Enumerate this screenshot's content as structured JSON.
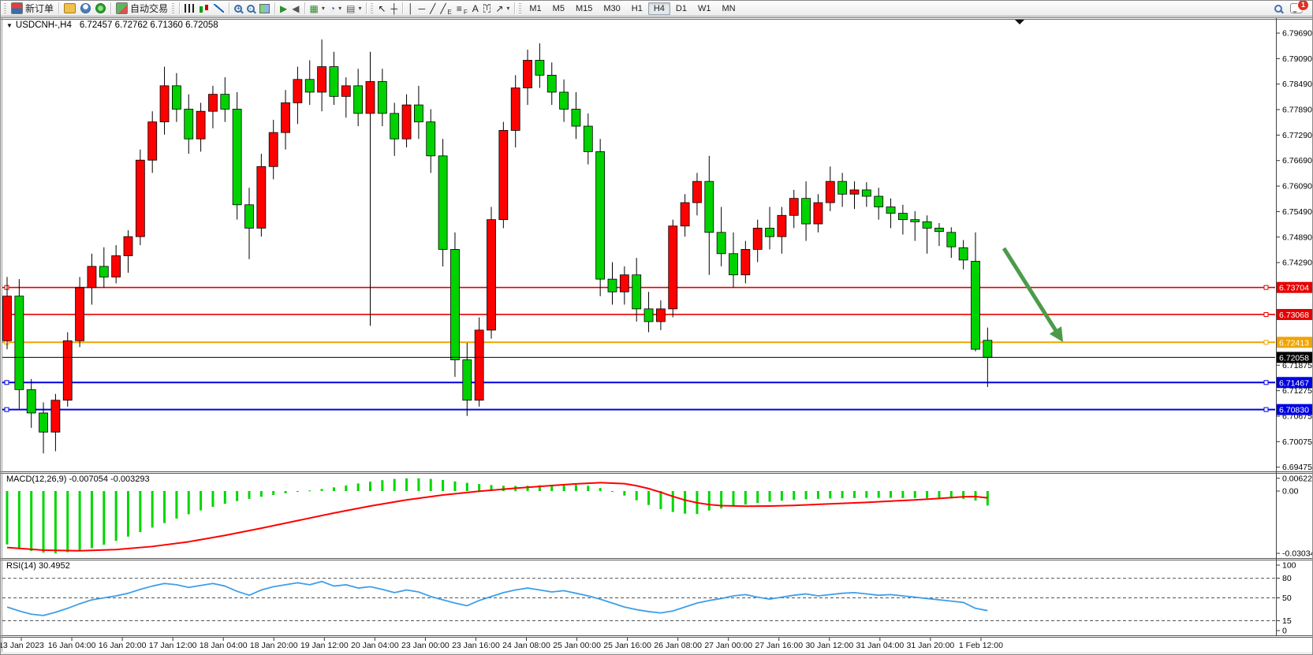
{
  "toolbar": {
    "new_order_label": "新订单",
    "auto_trading_label": "自动交易",
    "timeframes": [
      "M1",
      "M5",
      "M15",
      "M30",
      "H1",
      "H4",
      "D1",
      "W1",
      "MN"
    ],
    "active_timeframe": "H4",
    "notification_count": "1",
    "icon_groups": [
      {
        "name": "panels",
        "items": [
          {
            "name": "profiles-icon",
            "kind": "css",
            "cls": "ic-prof"
          },
          {
            "name": "accounts-icon",
            "kind": "css",
            "cls": "ic-acct"
          },
          {
            "name": "signals-icon",
            "kind": "css",
            "cls": "ic-sig"
          }
        ]
      },
      {
        "name": "chart-types",
        "items": [
          {
            "name": "bar-chart-icon",
            "kind": "css",
            "cls": "ic-bars"
          },
          {
            "name": "candlestick-chart-icon",
            "kind": "css",
            "cls": "ic-candles"
          },
          {
            "name": "line-chart-icon",
            "kind": "css",
            "cls": "ic-line"
          }
        ]
      },
      {
        "name": "zooming",
        "items": [
          {
            "name": "zoom-in-icon",
            "kind": "mag",
            "sign": "+"
          },
          {
            "name": "zoom-out-icon",
            "kind": "mag",
            "sign": "-"
          },
          {
            "name": "tile-windows-icon",
            "kind": "css",
            "cls": "ic-tile"
          }
        ]
      },
      {
        "name": "scrolling",
        "items": [
          {
            "name": "auto-scroll-icon",
            "kind": "glyph",
            "glyph": "▶",
            "color": "#2c8f2c"
          },
          {
            "name": "chart-shift-icon",
            "kind": "glyph",
            "glyph": "◀",
            "color": "#555555"
          }
        ]
      },
      {
        "name": "objects",
        "items": [
          {
            "name": "new-chart-icon",
            "kind": "glyph",
            "glyph": "▦",
            "color": "#2c8f2c",
            "dropdown": true
          },
          {
            "name": "period-selector-icon",
            "kind": "glyph",
            "glyph": "◔",
            "color": "#3a6ea5",
            "dropdown": true
          },
          {
            "name": "chart-template-icon",
            "kind": "glyph",
            "glyph": "▤",
            "color": "#555555",
            "dropdown": true
          }
        ]
      },
      {
        "name": "pointer",
        "items": [
          {
            "name": "cursor-icon",
            "kind": "glyph",
            "glyph": "↖",
            "color": "#222222"
          },
          {
            "name": "crosshair-icon",
            "kind": "glyph",
            "glyph": "┼",
            "color": "#222222"
          }
        ]
      },
      {
        "name": "drawing",
        "items": [
          {
            "name": "vertical-line-icon",
            "kind": "glyph",
            "glyph": "│",
            "color": "#222222"
          },
          {
            "name": "horizontal-line-icon",
            "kind": "glyph",
            "glyph": "─",
            "color": "#222222"
          },
          {
            "name": "trendline-icon",
            "kind": "glyph",
            "glyph": "╱",
            "color": "#222222"
          },
          {
            "name": "equidistant-channel-icon",
            "kind": "glyph",
            "glyph": "╱",
            "color": "#222222",
            "sub": "E"
          },
          {
            "name": "fibonacci-icon",
            "kind": "glyph",
            "glyph": "≡",
            "color": "#222222",
            "sub": "F"
          },
          {
            "name": "text-icon",
            "kind": "glyph",
            "glyph": "A",
            "color": "#222222"
          },
          {
            "name": "text-label-icon",
            "kind": "box",
            "glyph": "T"
          },
          {
            "name": "arrows-tool-icon",
            "kind": "glyph",
            "glyph": "↗",
            "color": "#222222",
            "dropdown": true
          }
        ]
      }
    ]
  },
  "chart": {
    "title": {
      "symbol": "USDCNH-,H4",
      "ohlc": "6.72457 6.72762 6.71360 6.72058"
    }
  },
  "indicators": {
    "macd": {
      "label_full": "MACD(12,26,9) -0.007054 -0.003293",
      "axis": [
        {
          "v": 0.006226,
          "label": "0.006226"
        },
        {
          "v": 0.0,
          "label": "0.00"
        },
        {
          "v": -0.030347,
          "label": "-0.030347"
        }
      ]
    },
    "rsi": {
      "label_full": "RSI(14) 30.4952",
      "axis": [
        {
          "v": 100,
          "label": "100"
        },
        {
          "v": 80,
          "label": "80"
        },
        {
          "v": 50,
          "label": "50"
        },
        {
          "v": 15,
          "label": "15"
        },
        {
          "v": 0,
          "label": "0"
        }
      ],
      "dashed_levels": [
        80,
        50,
        15
      ]
    }
  },
  "colors": {
    "bull": "#fd0000",
    "bear": "#00d200",
    "wick": "#000000",
    "macd_hist": "#00d700",
    "macd_signal": "#ff0000",
    "rsi_line": "#3f9fe8",
    "line_red": "#e60000",
    "line_orange": "#efa400",
    "line_blue": "#0000e0",
    "current_price": "#000000",
    "arrow": "#4b9b4b",
    "axis_text": "#000000"
  },
  "chart_data": {
    "type": "candlestick",
    "symbol": "USDCNH-",
    "period": "H4",
    "current_candle": {
      "open": 6.72457,
      "high": 6.72762,
      "low": 6.7136,
      "close": 6.72058
    },
    "ylim": [
      6.69475,
      6.7999
    ],
    "price_ticks": [
      6.7969,
      6.7909,
      6.7849,
      6.7789,
      6.7729,
      6.7669,
      6.7609,
      6.7549,
      6.7489,
      6.7429,
      6.71875,
      6.71275,
      6.70675,
      6.70075,
      6.69475
    ],
    "horizontal_lines": [
      {
        "price": 6.73704,
        "color_key": "line_red"
      },
      {
        "price": 6.73068,
        "color_key": "line_red"
      },
      {
        "price": 6.72413,
        "color_key": "line_orange"
      },
      {
        "price": 6.71467,
        "color_key": "line_blue"
      },
      {
        "price": 6.7083,
        "color_key": "line_blue"
      }
    ],
    "current_price": 6.72058,
    "date_labels": [
      "13 Jan 2023",
      "16 Jan 04:00",
      "16 Jan 20:00",
      "17 Jan 12:00",
      "18 Jan 04:00",
      "18 Jan 20:00",
      "19 Jan 12:00",
      "20 Jan 04:00",
      "23 Jan 00:00",
      "23 Jan 16:00",
      "24 Jan 08:00",
      "25 Jan 00:00",
      "25 Jan 16:00",
      "26 Jan 08:00",
      "27 Jan 00:00",
      "27 Jan 16:00",
      "30 Jan 12:00",
      "31 Jan 04:00",
      "31 Jan 20:00",
      "1 Feb 12:00"
    ],
    "candles": [
      [
        6.7245,
        6.7395,
        6.7225,
        6.735
      ],
      [
        6.735,
        6.739,
        6.7085,
        6.713
      ],
      [
        6.713,
        6.7155,
        6.704,
        6.7075
      ],
      [
        6.7075,
        6.71,
        6.698,
        6.703
      ],
      [
        6.703,
        6.712,
        6.6985,
        6.7105
      ],
      [
        6.7105,
        6.7265,
        6.709,
        6.7245
      ],
      [
        6.7245,
        6.7395,
        6.723,
        6.737
      ],
      [
        6.737,
        6.745,
        6.733,
        6.742
      ],
      [
        6.742,
        6.7465,
        6.737,
        6.7395
      ],
      [
        6.7395,
        6.747,
        6.738,
        6.7445
      ],
      [
        6.7445,
        6.7505,
        6.7405,
        6.749
      ],
      [
        6.749,
        6.7695,
        6.747,
        6.767
      ],
      [
        6.767,
        6.7785,
        6.764,
        6.776
      ],
      [
        6.776,
        6.789,
        6.773,
        6.7845
      ],
      [
        6.7845,
        6.7875,
        6.776,
        6.779
      ],
      [
        6.779,
        6.7825,
        6.7685,
        6.772
      ],
      [
        6.772,
        6.7805,
        6.769,
        6.7785
      ],
      [
        6.7785,
        6.7845,
        6.7745,
        6.7825
      ],
      [
        6.7825,
        6.7865,
        6.776,
        6.779
      ],
      [
        6.779,
        6.783,
        6.753,
        6.7565
      ],
      [
        6.7565,
        6.7605,
        6.7437,
        6.751
      ],
      [
        6.751,
        6.7685,
        6.749,
        6.7655
      ],
      [
        6.7655,
        6.7765,
        6.7625,
        6.7735
      ],
      [
        6.7735,
        6.7835,
        6.7695,
        6.7805
      ],
      [
        6.7805,
        6.789,
        6.7755,
        6.786
      ],
      [
        6.786,
        6.7905,
        6.78,
        6.783
      ],
      [
        6.783,
        6.7954,
        6.7785,
        6.789
      ],
      [
        6.789,
        6.7925,
        6.78,
        6.782
      ],
      [
        6.782,
        6.7865,
        6.777,
        6.7845
      ],
      [
        6.7845,
        6.7885,
        6.775,
        6.778
      ],
      [
        6.778,
        6.7925,
        6.728,
        6.7855
      ],
      [
        6.7855,
        6.7885,
        6.775,
        6.778
      ],
      [
        6.778,
        6.7805,
        6.768,
        6.772
      ],
      [
        6.772,
        6.7825,
        6.77,
        6.78
      ],
      [
        6.78,
        6.7845,
        6.772,
        6.776
      ],
      [
        6.776,
        6.779,
        6.764,
        6.768
      ],
      [
        6.768,
        6.772,
        6.742,
        6.746
      ],
      [
        6.746,
        6.75,
        6.716,
        6.72
      ],
      [
        6.72,
        6.724,
        6.7068,
        6.7105
      ],
      [
        6.7105,
        6.73,
        6.709,
        6.727
      ],
      [
        6.727,
        6.756,
        6.725,
        6.753
      ],
      [
        6.753,
        6.776,
        6.751,
        6.774
      ],
      [
        6.774,
        6.787,
        6.77,
        6.784
      ],
      [
        6.784,
        6.793,
        6.78,
        6.7905
      ],
      [
        6.7905,
        6.7945,
        6.784,
        6.787
      ],
      [
        6.787,
        6.79,
        6.78,
        6.783
      ],
      [
        6.783,
        6.786,
        6.776,
        6.779
      ],
      [
        6.779,
        6.783,
        6.772,
        6.775
      ],
      [
        6.775,
        6.778,
        6.766,
        6.769
      ],
      [
        6.769,
        6.772,
        6.735,
        6.739
      ],
      [
        6.739,
        6.743,
        6.733,
        6.736
      ],
      [
        6.736,
        6.742,
        6.733,
        6.74
      ],
      [
        6.74,
        6.744,
        6.729,
        6.732
      ],
      [
        6.732,
        6.736,
        6.7265,
        6.729
      ],
      [
        6.729,
        6.734,
        6.727,
        6.732
      ],
      [
        6.732,
        6.753,
        6.73,
        6.7515
      ],
      [
        6.7515,
        6.759,
        6.749,
        6.757
      ],
      [
        6.757,
        6.764,
        6.754,
        6.762
      ],
      [
        6.762,
        6.768,
        6.74,
        6.75
      ],
      [
        6.75,
        6.756,
        6.742,
        6.745
      ],
      [
        6.745,
        6.75,
        6.737,
        6.74
      ],
      [
        6.74,
        6.748,
        6.738,
        6.746
      ],
      [
        6.746,
        6.753,
        6.743,
        6.751
      ],
      [
        6.751,
        6.756,
        6.746,
        6.749
      ],
      [
        6.749,
        6.756,
        6.745,
        6.754
      ],
      [
        6.754,
        6.76,
        6.751,
        6.758
      ],
      [
        6.758,
        6.762,
        6.748,
        6.752
      ],
      [
        6.752,
        6.759,
        6.75,
        6.757
      ],
      [
        6.757,
        6.7655,
        6.755,
        6.762
      ],
      [
        6.762,
        6.764,
        6.756,
        6.759
      ],
      [
        6.759,
        6.762,
        6.7555,
        6.76
      ],
      [
        6.76,
        6.7618,
        6.756,
        6.7585
      ],
      [
        6.7585,
        6.7605,
        6.753,
        6.756
      ],
      [
        6.756,
        6.758,
        6.751,
        6.7545
      ],
      [
        6.7545,
        6.7565,
        6.7495,
        6.753
      ],
      [
        6.753,
        6.755,
        6.748,
        6.7525
      ],
      [
        6.7525,
        6.754,
        6.745,
        6.751
      ],
      [
        6.751,
        6.7522,
        6.7468,
        6.7502
      ],
      [
        6.75,
        6.7512,
        6.744,
        6.7466
      ],
      [
        6.7464,
        6.7482,
        6.7413,
        6.7435
      ],
      [
        6.7432,
        6.75,
        6.722,
        6.7225
      ],
      [
        6.7246,
        6.7276,
        6.7136,
        6.7206
      ]
    ],
    "macd_histogram": [
      -0.026,
      -0.0278,
      -0.0292,
      -0.03,
      -0.0303,
      -0.0298,
      -0.029,
      -0.0278,
      -0.0262,
      -0.0243,
      -0.0222,
      -0.02,
      -0.0178,
      -0.0156,
      -0.0134,
      -0.0113,
      -0.0094,
      -0.0077,
      -0.0062,
      -0.0049,
      -0.0038,
      -0.0028,
      -0.0019,
      -0.0011,
      -0.0004,
      0.0003,
      0.001,
      0.0018,
      0.0027,
      0.0037,
      0.0046,
      0.0053,
      0.0059,
      0.0062,
      0.0062,
      0.0059,
      0.0054,
      0.0047,
      0.004,
      0.0034,
      0.0029,
      0.0026,
      0.0025,
      0.0026,
      0.0028,
      0.003,
      0.0031,
      0.003,
      0.0026,
      0.0015,
      0.0,
      -0.0022,
      -0.0045,
      -0.0068,
      -0.0088,
      -0.0102,
      -0.011,
      -0.0112,
      -0.0095,
      -0.0085,
      -0.0075,
      -0.0066,
      -0.0058,
      -0.0052,
      -0.0047,
      -0.0043,
      -0.004,
      -0.0038,
      -0.0036,
      -0.0035,
      -0.0034,
      -0.0033,
      -0.0033,
      -0.0033,
      -0.0034,
      -0.0034,
      -0.0035,
      -0.0035,
      -0.0036,
      -0.0038,
      -0.0046,
      -0.00705
    ],
    "macd_signal_points": [
      [
        0,
        -0.0275
      ],
      [
        3,
        -0.0288
      ],
      [
        6,
        -0.0291
      ],
      [
        9,
        -0.0285
      ],
      [
        12,
        -0.027
      ],
      [
        15,
        -0.0247
      ],
      [
        18,
        -0.0216
      ],
      [
        21,
        -0.0181
      ],
      [
        24,
        -0.0144
      ],
      [
        27,
        -0.0107
      ],
      [
        30,
        -0.0073
      ],
      [
        33,
        -0.0043
      ],
      [
        36,
        -0.0019
      ],
      [
        39,
        -0.0001
      ],
      [
        42,
        0.0014
      ],
      [
        45,
        0.0027
      ],
      [
        47,
        0.0035
      ],
      [
        49,
        0.0041
      ],
      [
        51,
        0.0036
      ],
      [
        52,
        0.0026
      ],
      [
        53,
        0.0012
      ],
      [
        54,
        -0.0006
      ],
      [
        55,
        -0.0026
      ],
      [
        56,
        -0.0044
      ],
      [
        57,
        -0.0057
      ],
      [
        58,
        -0.0066
      ],
      [
        59,
        -0.0071
      ],
      [
        61,
        -0.0074
      ],
      [
        63,
        -0.0073
      ],
      [
        65,
        -0.007
      ],
      [
        67,
        -0.0065
      ],
      [
        69,
        -0.006
      ],
      [
        71,
        -0.0055
      ],
      [
        73,
        -0.0049
      ],
      [
        75,
        -0.0043
      ],
      [
        77,
        -0.0036
      ],
      [
        79,
        -0.0028
      ],
      [
        80,
        -0.0027
      ],
      [
        81,
        -0.0033
      ]
    ],
    "rsi_values": [
      36,
      30,
      25,
      23,
      28,
      34,
      41,
      47,
      50,
      53,
      57,
      63,
      68,
      72,
      70,
      66,
      69,
      72,
      68,
      60,
      54,
      62,
      67,
      70,
      73,
      70,
      75,
      68,
      70,
      65,
      67,
      63,
      58,
      62,
      59,
      52,
      47,
      42,
      38,
      46,
      52,
      58,
      62,
      65,
      62,
      59,
      61,
      57,
      53,
      48,
      42,
      36,
      32,
      29,
      27,
      30,
      36,
      42,
      46,
      49,
      53,
      55,
      51,
      48,
      51,
      54,
      56,
      53,
      55,
      57,
      58,
      56,
      54,
      55,
      53,
      51,
      49,
      47,
      45,
      43,
      34,
      30.5
    ],
    "annotation_arrow": {
      "from": [
        1272,
        314
      ],
      "to": [
        1347,
        433
      ]
    }
  }
}
